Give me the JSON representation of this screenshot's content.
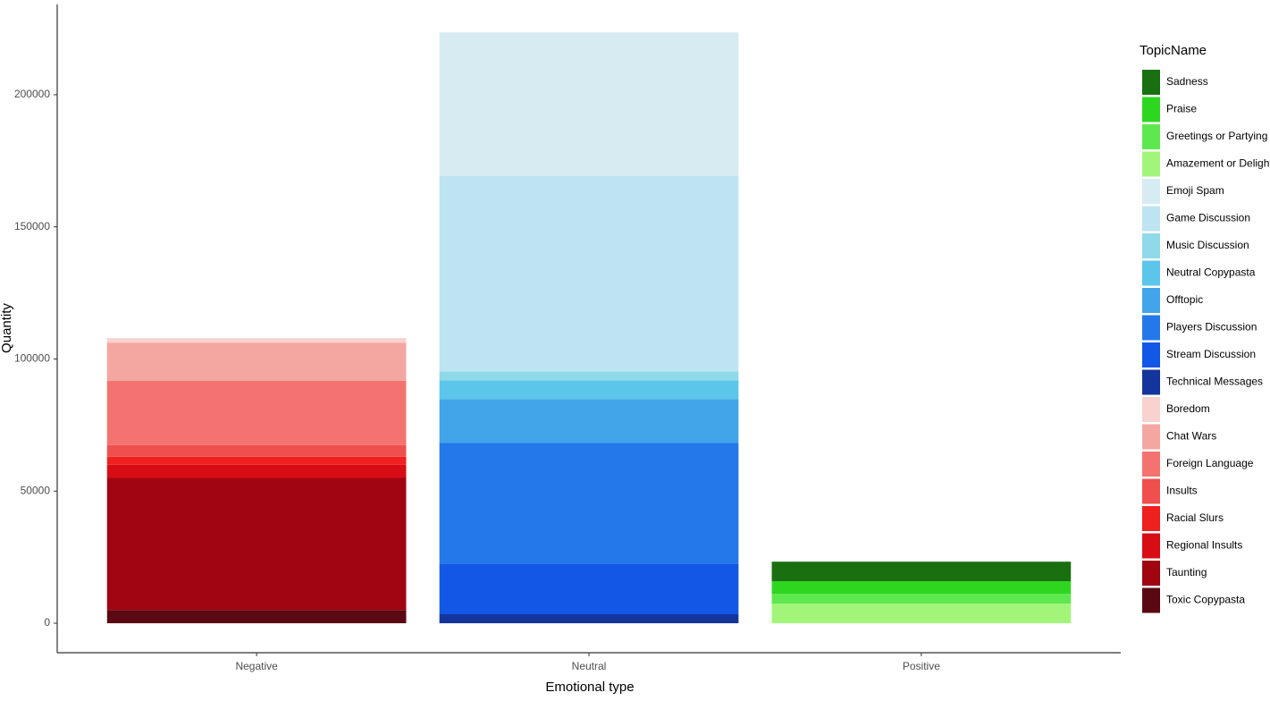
{
  "chart_data": {
    "type": "stacked_bar",
    "x_label": "Emotional type",
    "y_label": "Quantity",
    "categories": [
      "Negative",
      "Neutral",
      "Positive"
    ],
    "legend_title": "TopicName",
    "series": [
      {
        "name": "Sadness",
        "color": "#1a7010",
        "values": [
          null,
          null,
          7400
        ]
      },
      {
        "name": "Praise",
        "color": "#2ed620",
        "values": [
          null,
          null,
          4800
        ]
      },
      {
        "name": "Greetings or Partying",
        "color": "#5ee84f",
        "values": [
          null,
          null,
          3700
        ]
      },
      {
        "name": "Amazement or Delight",
        "color": "#a3f57a",
        "values": [
          null,
          null,
          7400
        ]
      },
      {
        "name": "Emoji Spam",
        "color": "#d6ecf2",
        "values": [
          null,
          54400,
          null
        ]
      },
      {
        "name": "Game Discussion",
        "color": "#bde4f0",
        "values": [
          null,
          73900,
          null
        ]
      },
      {
        "name": "Music Discussion",
        "color": "#8fd9e8",
        "values": [
          null,
          3400,
          null
        ]
      },
      {
        "name": "Neutral Copypasta",
        "color": "#5bc6ea",
        "values": [
          null,
          7100,
          null
        ]
      },
      {
        "name": "Offtopic",
        "color": "#42a5ea",
        "values": [
          null,
          16600,
          null
        ]
      },
      {
        "name": "Players Discussion",
        "color": "#2478ea",
        "values": [
          null,
          45600,
          null
        ]
      },
      {
        "name": "Stream Discussion",
        "color": "#1257e6",
        "values": [
          null,
          19200,
          null
        ]
      },
      {
        "name": "Technical Messages",
        "color": "#14359c",
        "values": [
          null,
          3400,
          null
        ]
      },
      {
        "name": "Boredom",
        "color": "#f7d2cf",
        "values": [
          1700,
          null,
          null
        ]
      },
      {
        "name": "Chat Wars",
        "color": "#f4a6a0",
        "values": [
          14500,
          null,
          null
        ]
      },
      {
        "name": "Foreign Language",
        "color": "#f47370",
        "values": [
          24300,
          null,
          null
        ]
      },
      {
        "name": "Insults",
        "color": "#f0504d",
        "values": [
          4400,
          null,
          null
        ]
      },
      {
        "name": "Racial Slurs",
        "color": "#ee2020",
        "values": [
          3000,
          null,
          null
        ]
      },
      {
        "name": "Regional Insults",
        "color": "#d80c14",
        "values": [
          5000,
          null,
          null
        ]
      },
      {
        "name": "Taunting",
        "color": "#a00512",
        "values": [
          50000,
          null,
          null
        ]
      },
      {
        "name": "Toxic Copypasta",
        "color": "#5a0912",
        "values": [
          5000,
          null,
          null
        ]
      }
    ],
    "ylim": [
      -11150,
      234150
    ],
    "yticks": [
      0,
      50000,
      100000,
      150000,
      200000
    ],
    "grid": false
  }
}
